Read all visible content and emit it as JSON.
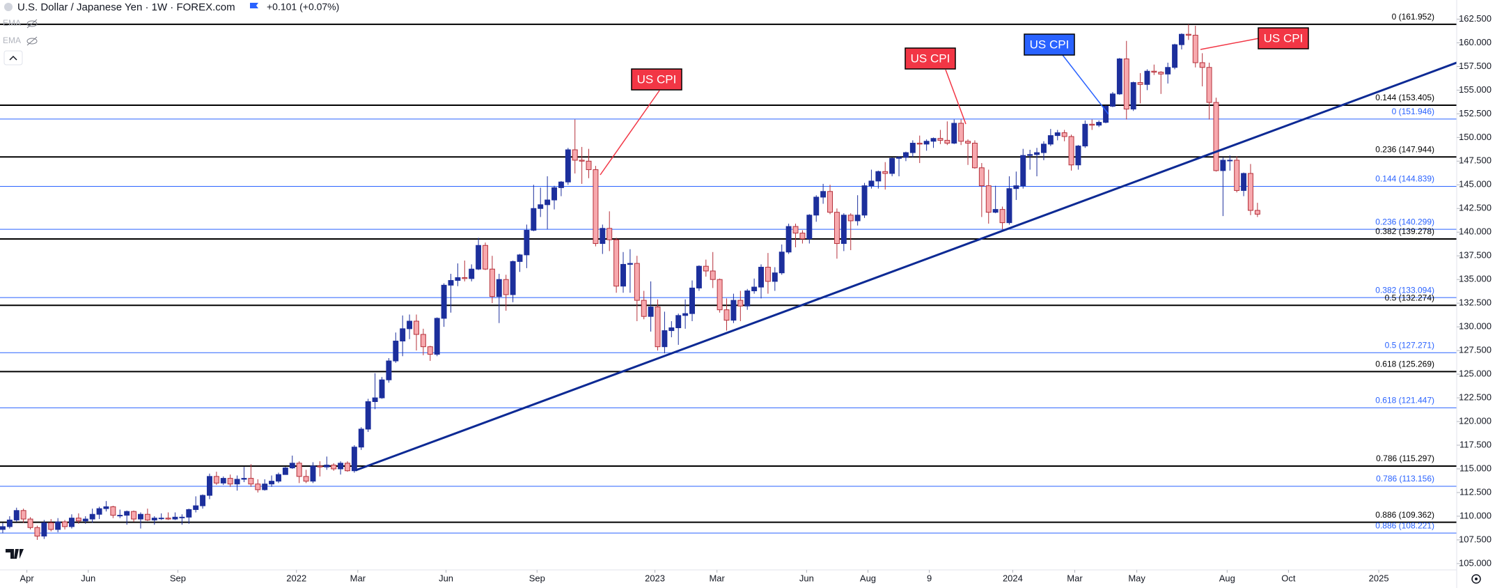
{
  "chart_data": {
    "type": "candlestick",
    "title": "U.S. Dollar / Japanese Yen · 1W · FOREX.com",
    "change": "+0.101 (+0.07%)",
    "indicators": [
      "EMA",
      "EMA"
    ],
    "up_color": "#1c2f9c",
    "down_color": "#f7a9ae",
    "down_border": "#b5303a",
    "xlim": [
      -0.4,
      210.9
    ],
    "ylim": [
      104.33,
      164.52
    ],
    "xticks": [
      {
        "value": 3.5,
        "label": "Apr"
      },
      {
        "value": 12.4,
        "label": "Jun"
      },
      {
        "value": 25.4,
        "label": "Sep"
      },
      {
        "value": 42.6,
        "label": "2022"
      },
      {
        "value": 51.5,
        "label": "Mar"
      },
      {
        "value": 64.3,
        "label": "Jun"
      },
      {
        "value": 77.5,
        "label": "Sep"
      },
      {
        "value": 94.6,
        "label": "2023"
      },
      {
        "value": 103.6,
        "label": "Mar"
      },
      {
        "value": 116.6,
        "label": "Jun"
      },
      {
        "value": 125.5,
        "label": "Aug"
      },
      {
        "value": 134.4,
        "label": "9"
      },
      {
        "value": 146.5,
        "label": "2024"
      },
      {
        "value": 155.5,
        "label": "Mar"
      },
      {
        "value": 164.5,
        "label": "May"
      },
      {
        "value": 177.6,
        "label": "Aug"
      },
      {
        "value": 186.5,
        "label": "Oct"
      },
      {
        "value": 199.6,
        "label": "2025"
      }
    ],
    "yticks": [
      {
        "value": 105,
        "label": "105.000"
      },
      {
        "value": 107.5,
        "label": "107.500"
      },
      {
        "value": 110,
        "label": "110.000"
      },
      {
        "value": 112.5,
        "label": "112.500"
      },
      {
        "value": 115,
        "label": "115.000"
      },
      {
        "value": 117.5,
        "label": "117.500"
      },
      {
        "value": 120,
        "label": "120.000"
      },
      {
        "value": 122.5,
        "label": "122.500"
      },
      {
        "value": 125,
        "label": "125.000"
      },
      {
        "value": 127.5,
        "label": "127.500"
      },
      {
        "value": 130,
        "label": "130.000"
      },
      {
        "value": 132.5,
        "label": "132.500"
      },
      {
        "value": 135,
        "label": "135.000"
      },
      {
        "value": 137.5,
        "label": "137.500"
      },
      {
        "value": 140,
        "label": "140.000"
      },
      {
        "value": 142.5,
        "label": "142.500"
      },
      {
        "value": 145,
        "label": "145.000"
      },
      {
        "value": 147.5,
        "label": "147.500"
      },
      {
        "value": 150,
        "label": "150.000"
      },
      {
        "value": 152.5,
        "label": "152.500"
      },
      {
        "value": 155,
        "label": "155.000"
      },
      {
        "value": 157.5,
        "label": "157.500"
      },
      {
        "value": 160,
        "label": "160.000"
      },
      {
        "value": 162.5,
        "label": "162.500"
      }
    ],
    "open": [
      108.6,
      108.9,
      109.6,
      110.6,
      109.7,
      108.8,
      107.9,
      109.3,
      108.6,
      109.4,
      108.9,
      109.8,
      109.5,
      109.7,
      110.2,
      110.8,
      111.0,
      110.1,
      110.1,
      110.5,
      109.7,
      110.2,
      109.6,
      109.8,
      109.8,
      109.7,
      109.9,
      109.9,
      110.7,
      111.1,
      112.2,
      114.2,
      113.5,
      114.0,
      113.4,
      113.9,
      114.0,
      113.4,
      112.8,
      113.4,
      113.7,
      114.4,
      115.1,
      115.6,
      114.2,
      113.7,
      115.3,
      115.2,
      115.4,
      115.0,
      115.6,
      114.8,
      117.3,
      119.2,
      122.1,
      122.5,
      124.4,
      126.4,
      128.5,
      129.8,
      130.6,
      129.2,
      127.9,
      127.1,
      130.9,
      134.4,
      134.9,
      135.2,
      135.1,
      136.1,
      138.6,
      136.1,
      133.2,
      135.0,
      133.4,
      136.9,
      137.6,
      140.2,
      142.5,
      142.9,
      143.4,
      144.7,
      145.3,
      148.7,
      147.6,
      147.5,
      146.6,
      138.8,
      140.4,
      139.2,
      134.3,
      136.6,
      136.7,
      132.8,
      131.1,
      132.1,
      127.9,
      129.6,
      129.9,
      131.2,
      131.4,
      134.1,
      136.4,
      135.9,
      135.0,
      131.8,
      130.7,
      132.8,
      132.2,
      133.8,
      134.2,
      136.3,
      134.8,
      135.7,
      137.9,
      140.6,
      139.9,
      139.3,
      141.8,
      143.7,
      144.3,
      142.1,
      138.8,
      141.8,
      141.2,
      141.8,
      144.9,
      145.4,
      146.4,
      146.2,
      147.8,
      147.9,
      148.4,
      149.4,
      149.3,
      149.6,
      149.9,
      149.7,
      149.4,
      151.5,
      149.6,
      149.4,
      146.8,
      144.9,
      142.1,
      142.4,
      141.0,
      144.6,
      144.9,
      148.1,
      148.2,
      148.4,
      149.3,
      150.2,
      150.5,
      150.1,
      147.1,
      149.1,
      151.4,
      151.3,
      151.6,
      153.3,
      154.6,
      158.3,
      153.0,
      155.8,
      155.6,
      157.0,
      156.9,
      156.7,
      157.4,
      159.8,
      160.9,
      160.8,
      157.9,
      157.4,
      153.7,
      146.5,
      147.6,
      147.6,
      144.4,
      146.2,
      142.3
    ],
    "high": [
      109.3,
      110.0,
      110.9,
      110.8,
      109.9,
      109.0,
      109.6,
      109.7,
      109.8,
      109.6,
      110.2,
      110.3,
      110.0,
      110.8,
      111.0,
      111.6,
      111.1,
      110.7,
      110.6,
      110.6,
      110.4,
      110.8,
      110.0,
      110.3,
      110.4,
      110.4,
      110.2,
      110.8,
      112.1,
      112.3,
      114.5,
      114.7,
      114.2,
      114.4,
      114.3,
      115.2,
      115.5,
      113.9,
      113.9,
      114.3,
      114.6,
      115.2,
      116.4,
      115.8,
      114.9,
      115.7,
      115.8,
      116.3,
      115.6,
      115.8,
      115.8,
      117.5,
      119.4,
      122.4,
      125.1,
      124.7,
      126.7,
      129.4,
      131.2,
      131.3,
      131.3,
      129.8,
      128.0,
      131.0,
      134.6,
      135.6,
      136.7,
      137.0,
      136.6,
      139.4,
      138.9,
      137.5,
      135.6,
      135.5,
      137.0,
      137.7,
      140.8,
      145.0,
      144.7,
      145.9,
      144.9,
      145.4,
      148.9,
      151.9,
      149.0,
      148.8,
      147.0,
      140.8,
      142.2,
      139.4,
      137.9,
      138.2,
      137.5,
      133.8,
      134.8,
      132.9,
      131.6,
      130.6,
      131.4,
      132.9,
      134.9,
      136.5,
      137.1,
      137.9,
      135.1,
      133.0,
      133.5,
      133.8,
      134.0,
      135.1,
      136.6,
      137.8,
      136.3,
      138.7,
      140.9,
      140.9,
      140.2,
      141.9,
      143.9,
      145.1,
      145.0,
      142.5,
      142.0,
      142.0,
      143.9,
      145.2,
      146.6,
      146.5,
      147.4,
      147.9,
      148.0,
      148.5,
      149.7,
      150.2,
      149.8,
      150.0,
      150.8,
      151.7,
      151.9,
      151.9,
      149.8,
      149.7,
      147.3,
      146.6,
      144.9,
      142.7,
      145.9,
      146.4,
      148.8,
      148.7,
      148.9,
      149.6,
      150.9,
      150.8,
      150.8,
      150.3,
      149.2,
      151.8,
      151.9,
      151.8,
      153.4,
      154.8,
      158.4,
      160.2,
      155.9,
      156.8,
      157.2,
      157.7,
      157.0,
      157.9,
      159.9,
      161.0,
      161.95,
      161.8,
      158.9,
      157.9,
      154.2,
      147.9,
      148.1,
      148.0,
      146.3,
      147.2,
      143.1
    ],
    "low": [
      108.2,
      108.7,
      109.4,
      109.3,
      108.6,
      107.5,
      107.6,
      108.4,
      108.3,
      108.6,
      108.7,
      109.2,
      109.2,
      109.3,
      109.7,
      110.5,
      109.8,
      109.8,
      109.1,
      109.4,
      108.7,
      109.5,
      109.1,
      109.6,
      109.6,
      109.6,
      109.1,
      109.2,
      110.4,
      110.8,
      111.8,
      113.3,
      113.3,
      113.1,
      112.7,
      113.6,
      113.1,
      112.5,
      112.7,
      113.1,
      113.5,
      114.4,
      115.0,
      113.5,
      113.5,
      113.5,
      114.2,
      114.9,
      114.8,
      114.4,
      114.7,
      114.6,
      117.0,
      118.9,
      121.3,
      122.4,
      124.1,
      126.2,
      126.9,
      128.7,
      127.5,
      127.0,
      126.4,
      126.9,
      130.0,
      131.5,
      134.3,
      134.8,
      134.8,
      136.0,
      136.0,
      132.5,
      130.4,
      131.7,
      132.6,
      135.8,
      136.2,
      140.1,
      141.6,
      140.3,
      142.4,
      143.8,
      145.0,
      146.2,
      145.1,
      145.7,
      138.5,
      137.7,
      138.0,
      133.6,
      133.6,
      133.6,
      130.6,
      130.8,
      129.5,
      127.5,
      127.2,
      128.9,
      128.1,
      129.8,
      130.6,
      133.8,
      135.3,
      134.1,
      131.5,
      129.6,
      130.4,
      130.6,
      131.8,
      133.5,
      133.0,
      133.5,
      133.8,
      135.5,
      137.7,
      138.4,
      138.8,
      138.8,
      141.1,
      143.0,
      141.9,
      137.2,
      138.0,
      138.1,
      140.7,
      141.5,
      144.6,
      144.6,
      144.5,
      145.9,
      145.9,
      147.5,
      147.9,
      147.3,
      148.6,
      148.9,
      149.3,
      149.2,
      149.3,
      149.2,
      147.1,
      146.7,
      141.6,
      140.9,
      142.0,
      140.3,
      140.8,
      143.4,
      144.6,
      146.6,
      145.9,
      147.6,
      149.1,
      149.7,
      149.6,
      146.5,
      146.6,
      148.9,
      150.8,
      151.1,
      151.5,
      153.2,
      154.5,
      151.9,
      152.8,
      153.6,
      155.0,
      156.6,
      154.6,
      155.7,
      157.2,
      159.3,
      160.3,
      157.4,
      155.4,
      151.9,
      146.4,
      141.7,
      146.5,
      144.2,
      143.8,
      141.8,
      141.6
    ],
    "close": [
      108.9,
      109.6,
      110.6,
      109.7,
      108.8,
      107.9,
      109.3,
      108.6,
      109.4,
      108.9,
      109.8,
      109.5,
      109.7,
      110.2,
      110.8,
      111.0,
      110.1,
      110.1,
      110.5,
      109.7,
      110.2,
      109.6,
      109.8,
      109.8,
      109.7,
      109.9,
      109.9,
      110.7,
      111.1,
      112.2,
      114.2,
      113.5,
      114.0,
      113.4,
      113.9,
      114.0,
      113.4,
      112.8,
      113.4,
      113.7,
      114.4,
      115.1,
      115.6,
      114.2,
      113.7,
      115.3,
      115.2,
      115.4,
      115.0,
      115.6,
      114.8,
      117.3,
      119.2,
      122.1,
      122.5,
      124.4,
      126.4,
      128.5,
      129.8,
      130.6,
      129.2,
      127.9,
      127.1,
      130.9,
      134.4,
      134.9,
      135.2,
      135.1,
      136.1,
      138.6,
      136.1,
      133.2,
      135.0,
      133.4,
      136.9,
      137.6,
      140.2,
      142.5,
      142.9,
      143.4,
      144.7,
      145.3,
      148.7,
      147.6,
      147.5,
      146.6,
      138.8,
      140.4,
      139.2,
      134.3,
      136.6,
      136.7,
      132.8,
      131.1,
      132.1,
      127.9,
      129.6,
      129.9,
      131.2,
      131.4,
      134.1,
      136.4,
      135.9,
      135.0,
      131.8,
      130.7,
      132.8,
      132.2,
      133.8,
      134.2,
      136.3,
      134.8,
      135.7,
      137.9,
      140.6,
      139.9,
      139.3,
      141.8,
      143.7,
      144.3,
      142.1,
      138.8,
      141.8,
      141.2,
      141.8,
      144.9,
      145.4,
      146.4,
      146.2,
      147.8,
      147.9,
      148.4,
      149.4,
      149.3,
      149.6,
      149.9,
      149.7,
      149.4,
      151.5,
      149.6,
      149.4,
      146.8,
      144.9,
      142.1,
      142.4,
      141.0,
      144.6,
      144.9,
      148.1,
      148.2,
      148.4,
      149.3,
      150.2,
      150.5,
      150.1,
      147.1,
      149.1,
      151.4,
      151.3,
      151.6,
      153.3,
      154.6,
      158.3,
      153.0,
      155.8,
      155.6,
      157.0,
      156.9,
      156.7,
      157.4,
      159.8,
      160.9,
      160.8,
      157.9,
      157.4,
      153.7,
      146.5,
      147.6,
      147.6,
      144.4,
      146.2,
      142.3,
      141.9
    ],
    "fib_levels": [
      {
        "value": 161.952,
        "label": "0 (161.952)",
        "color": "#000000"
      },
      {
        "value": 153.405,
        "label": "0.144 (153.405)",
        "color": "#000000"
      },
      {
        "value": 151.946,
        "label": "0 (151.946)",
        "color": "#2962ff"
      },
      {
        "value": 147.944,
        "label": "0.236 (147.944)",
        "color": "#000000"
      },
      {
        "value": 144.839,
        "label": "0.144 (144.839)",
        "color": "#2962ff"
      },
      {
        "value": 140.299,
        "label": "0.236 (140.299)",
        "color": "#2962ff"
      },
      {
        "value": 139.278,
        "label": "0.382 (139.278)",
        "color": "#000000"
      },
      {
        "value": 133.094,
        "label": "0.382 (133.094)",
        "color": "#2962ff"
      },
      {
        "value": 132.274,
        "label": "0.5 (132.274)",
        "color": "#000000"
      },
      {
        "value": 127.271,
        "label": "0.5 (127.271)",
        "color": "#2962ff"
      },
      {
        "value": 125.269,
        "label": "0.618 (125.269)",
        "color": "#000000"
      },
      {
        "value": 121.447,
        "label": "0.618 (121.447)",
        "color": "#2962ff"
      },
      {
        "value": 115.297,
        "label": "0.786 (115.297)",
        "color": "#000000"
      },
      {
        "value": 113.156,
        "label": "0.786 (113.156)",
        "color": "#2962ff"
      },
      {
        "value": 109.362,
        "label": "0.886 (109.362)",
        "color": "#000000"
      },
      {
        "value": 108.221,
        "label": "0.886 (108.221)",
        "color": "#2962ff"
      }
    ],
    "trendline": {
      "x": [
        51.2,
        210.9
      ],
      "y": [
        114.85,
        157.9
      ],
      "color": "#0d2a94"
    },
    "annotations": [
      {
        "text": "US CPI",
        "color": "#f23645"
      },
      {
        "text": "US CPI",
        "color": "#f23645"
      },
      {
        "text": "US CPI",
        "color": "#2962ff"
      },
      {
        "text": "US CPI",
        "color": "#f23645"
      }
    ]
  }
}
